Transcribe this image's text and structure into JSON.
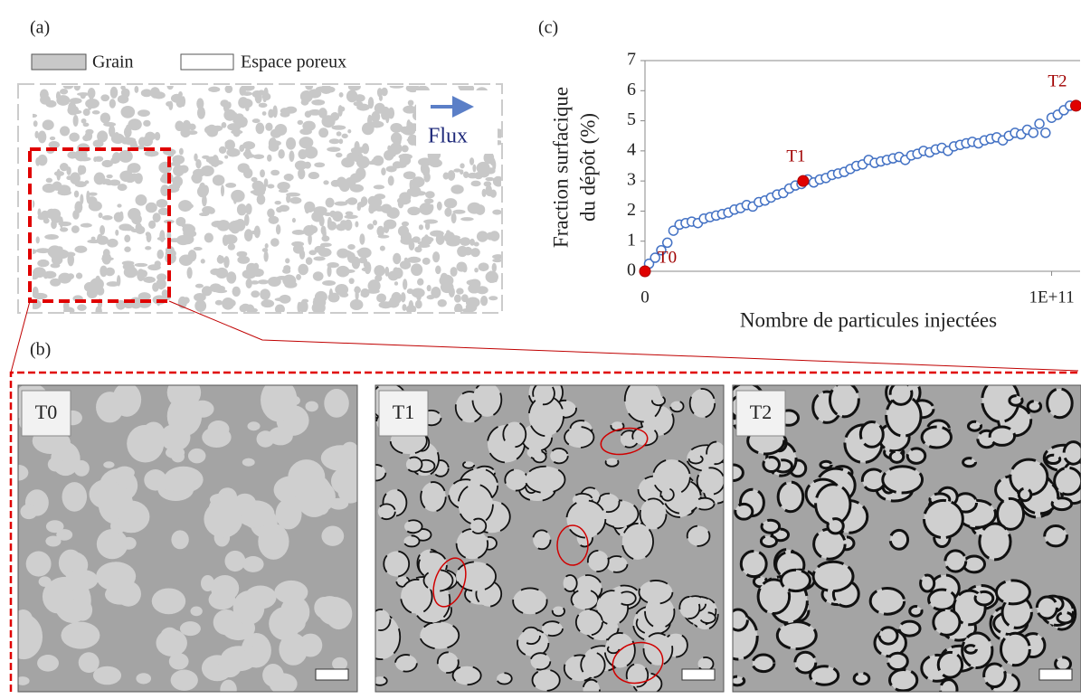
{
  "panel_a": {
    "label": "(a)",
    "legend": [
      "Grain",
      "Espace poreux"
    ],
    "flow_label": "Flux"
  },
  "panel_b": {
    "label": "(b)",
    "images": [
      "T0",
      "T1",
      "T2"
    ]
  },
  "chart_data": {
    "type": "scatter",
    "panel_label": "(c)",
    "xlabel": "Nombre de particules injectées",
    "ylabel": [
      "Fraction surfacique",
      "du dépôt (%)"
    ],
    "x": [
      1000000000.0,
      2500000000.0,
      4000000000.0,
      5500000000.0,
      7000000000.0,
      8500000000.0,
      10000000000.0,
      11500000000.0,
      13000000000.0,
      14500000000.0,
      16000000000.0,
      17500000000.0,
      19000000000.0,
      20500000000.0,
      22000000000.0,
      23500000000.0,
      25000000000.0,
      26500000000.0,
      28000000000.0,
      29500000000.0,
      31000000000.0,
      32500000000.0,
      34000000000.0,
      35500000000.0,
      37000000000.0,
      38500000000.0,
      40000000000.0,
      41500000000.0,
      43000000000.0,
      44500000000.0,
      46000000000.0,
      47500000000.0,
      49000000000.0,
      50500000000.0,
      52000000000.0,
      53500000000.0,
      55000000000.0,
      56500000000.0,
      58000000000.0,
      59500000000.0,
      61000000000.0,
      62500000000.0,
      64000000000.0,
      65500000000.0,
      67000000000.0,
      68500000000.0,
      70000000000.0,
      71500000000.0,
      73000000000.0,
      74500000000.0,
      76000000000.0,
      77500000000.0,
      79000000000.0,
      80500000000.0,
      82000000000.0,
      83500000000.0,
      85000000000.0,
      86500000000.0,
      88000000000.0,
      89500000000.0,
      91000000000.0,
      92500000000.0,
      94000000000.0,
      95500000000.0,
      97000000000.0,
      98500000000.0,
      100000000000.0,
      101500000000.0,
      103000000000.0,
      104500000000.0
    ],
    "values": [
      0.25,
      0.45,
      0.7,
      0.95,
      1.35,
      1.55,
      1.6,
      1.65,
      1.6,
      1.75,
      1.8,
      1.85,
      1.9,
      1.95,
      2.05,
      2.1,
      2.2,
      2.15,
      2.3,
      2.35,
      2.45,
      2.55,
      2.6,
      2.75,
      2.85,
      2.9,
      3.05,
      2.95,
      3.05,
      3.1,
      3.2,
      3.25,
      3.3,
      3.4,
      3.5,
      3.55,
      3.7,
      3.6,
      3.65,
      3.7,
      3.75,
      3.8,
      3.7,
      3.85,
      3.9,
      4.0,
      3.95,
      4.05,
      4.1,
      4.0,
      4.15,
      4.2,
      4.25,
      4.3,
      4.25,
      4.35,
      4.4,
      4.45,
      4.35,
      4.5,
      4.6,
      4.55,
      4.7,
      4.6,
      4.9,
      4.6,
      5.1,
      5.2,
      5.35,
      5.5
    ],
    "color": "#4472c4",
    "xlim": [
      0,
      107000000000.0
    ],
    "xticks": [
      0,
      {
        "value": 100000000000.0,
        "label": "1E+11"
      }
    ],
    "ylim": [
      0,
      7
    ],
    "yticks": [
      0,
      1,
      2,
      3,
      4,
      5,
      6,
      7
    ],
    "highlights": {
      "labels": [
        "T0",
        "T1",
        "T2"
      ],
      "x": [
        0,
        38900000000.0,
        106000000000.0
      ],
      "values": [
        0,
        3,
        5.5
      ],
      "color": "#e00000"
    }
  }
}
